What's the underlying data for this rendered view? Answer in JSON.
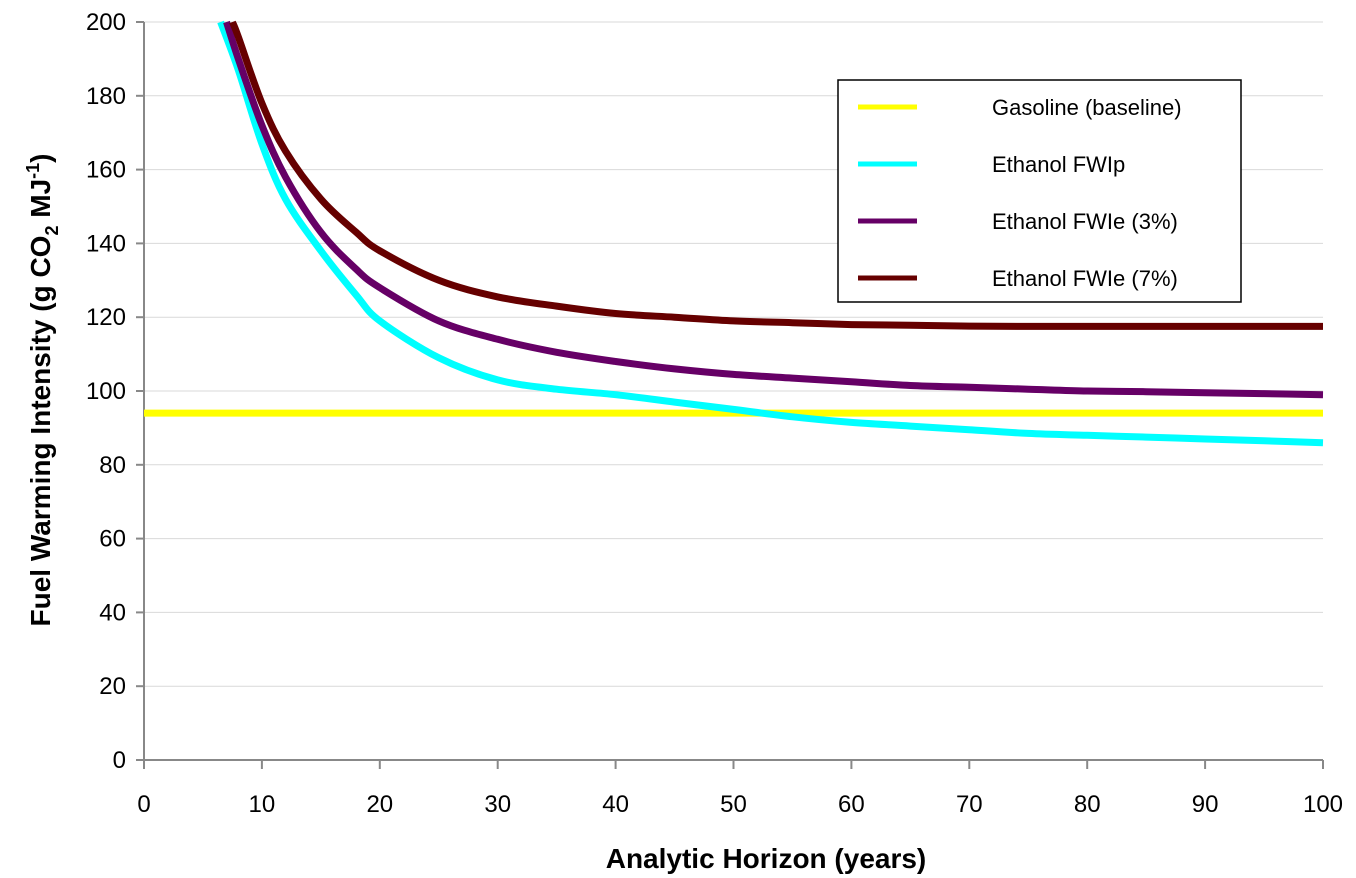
{
  "chart_data": {
    "type": "line",
    "xlabel": "Analytic Horizon (years)",
    "ylabel": {
      "prefix": "Fuel Warming Intensity (g CO",
      "sub": "2",
      "mid": " MJ",
      "sup": "-1",
      "suffix": ")"
    },
    "xlim": [
      0,
      100
    ],
    "ylim": [
      0,
      200
    ],
    "x_ticks": [
      "0",
      "10",
      "20",
      "30",
      "40",
      "50",
      "60",
      "70",
      "80",
      "90",
      "100"
    ],
    "y_ticks": [
      "0",
      "20",
      "40",
      "60",
      "80",
      "100",
      "120",
      "140",
      "160",
      "180",
      "200"
    ],
    "grid": "horizontal",
    "legend_position": "top-right",
    "series": [
      {
        "name": "Gasoline (baseline)",
        "color": "#ffff00",
        "x": [
          0,
          100
        ],
        "y": [
          94,
          94
        ]
      },
      {
        "name": "Ethanol FWIp",
        "color": "#00ffff",
        "x": [
          6.5,
          8,
          10,
          12,
          15,
          18,
          20,
          25,
          30,
          35,
          40,
          45,
          50,
          55,
          60,
          65,
          70,
          75,
          80,
          85,
          90,
          95,
          100
        ],
        "y": [
          200,
          187,
          167,
          152,
          138,
          126,
          119,
          109,
          103,
          100.5,
          99,
          97,
          95,
          93,
          91.5,
          90.5,
          89.5,
          88.5,
          88,
          87.5,
          87,
          86.5,
          86
        ]
      },
      {
        "name": "Ethanol FWIe (3%)",
        "color": "#660066",
        "x": [
          7,
          8,
          10,
          12,
          15,
          18,
          20,
          25,
          30,
          35,
          40,
          45,
          50,
          55,
          60,
          65,
          70,
          75,
          80,
          85,
          90,
          95,
          100
        ],
        "y": [
          200,
          190,
          172,
          158,
          143,
          133,
          128,
          119,
          114,
          110.5,
          108,
          106,
          104.5,
          103.5,
          102.5,
          101.5,
          101,
          100.5,
          100,
          99.8,
          99.5,
          99.3,
          99
        ]
      },
      {
        "name": "Ethanol FWIe (7%)",
        "color": "#660000",
        "x": [
          7.5,
          8,
          10,
          12,
          15,
          18,
          20,
          25,
          30,
          35,
          40,
          45,
          50,
          55,
          60,
          65,
          70,
          75,
          80,
          85,
          90,
          95,
          100
        ],
        "y": [
          200,
          196,
          178,
          165,
          152,
          143,
          138,
          130,
          125.5,
          123,
          121,
          120,
          119,
          118.5,
          118,
          117.8,
          117.6,
          117.5,
          117.5,
          117.5,
          117.5,
          117.5,
          117.5
        ]
      }
    ]
  }
}
